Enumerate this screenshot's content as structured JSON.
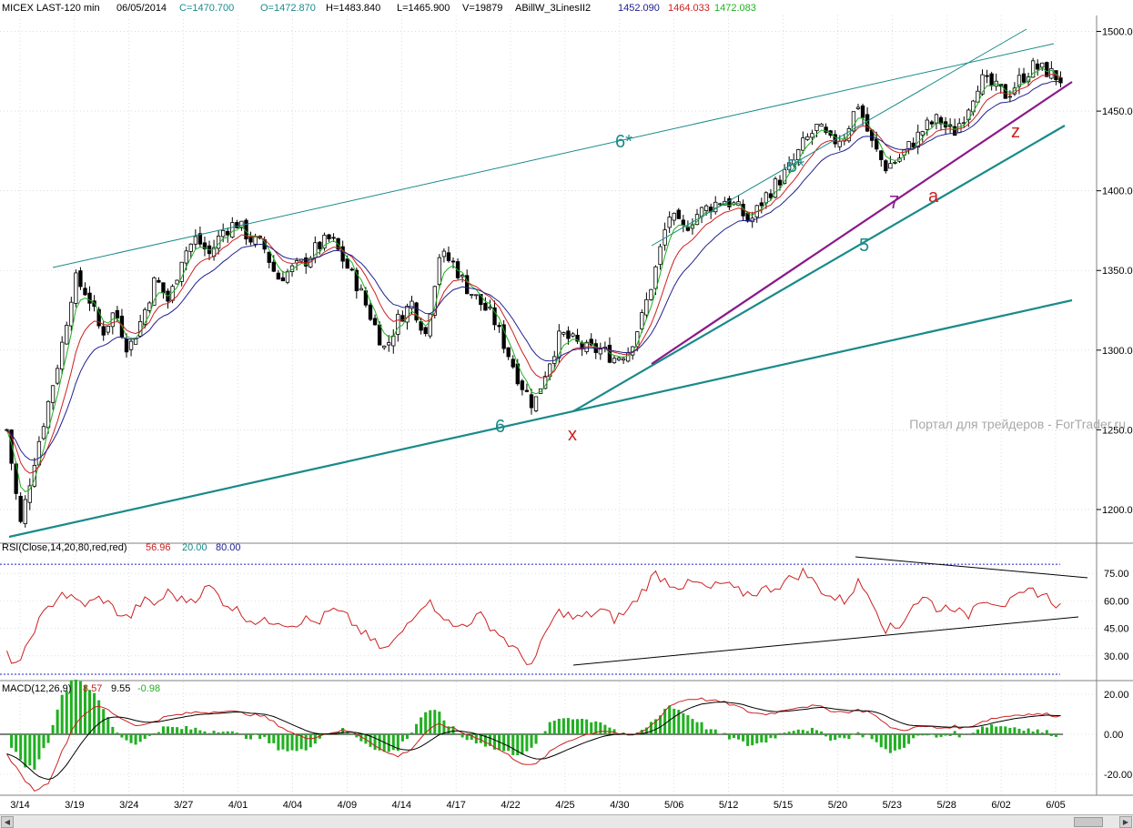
{
  "header": {
    "symbol": "MICEX LAST-120 min",
    "date": "06/05/2014",
    "close": "C=1470.700",
    "open": "O=1472.870",
    "high": "H=1483.840",
    "low": "L=1465.900",
    "volume": "V=19879",
    "indicator": "ABillW_3LinesII2",
    "line1": "1452.090",
    "line2": "1464.033",
    "line3": "1472.083"
  },
  "watermark": "Портал для трейдеров - ForTrader.ru",
  "colors": {
    "teal": "#1a8a8a",
    "purple": "#8a1a8a",
    "red": "#cc2020",
    "green": "#20b020",
    "blue": "#202090",
    "grid": "#c8c8c8"
  },
  "chart_data": [
    {
      "type": "candlestick",
      "panel": "price",
      "ylim": [
        1180,
        1510
      ],
      "y_ticks": [
        "1500.0",
        "1450.0",
        "1400.0",
        "1350.0",
        "1300.0",
        "1250.0",
        "1200.0"
      ],
      "x_tick_labels": [
        "3/14",
        "3/19",
        "3/24",
        "3/27",
        "4/01",
        "4/04",
        "4/09",
        "4/14",
        "4/17",
        "4/22",
        "4/25",
        "4/30",
        "5/06",
        "5/12",
        "5/15",
        "5/20",
        "5/23",
        "5/28",
        "6/02",
        "6/05"
      ],
      "series_shape": [
        1250,
        1190,
        1230,
        1265,
        1300,
        1345,
        1335,
        1310,
        1325,
        1300,
        1320,
        1345,
        1330,
        1360,
        1370,
        1360,
        1375,
        1380,
        1370,
        1365,
        1345,
        1350,
        1355,
        1365,
        1370,
        1355,
        1340,
        1320,
        1300,
        1320,
        1330,
        1310,
        1360,
        1355,
        1340,
        1330,
        1320,
        1300,
        1280,
        1265,
        1290,
        1310,
        1305,
        1300,
        1300,
        1295,
        1300,
        1320,
        1350,
        1385,
        1375,
        1385,
        1390,
        1395,
        1390,
        1380,
        1395,
        1405,
        1415,
        1430,
        1440,
        1430,
        1435,
        1455,
        1430,
        1415,
        1420,
        1430,
        1440,
        1445,
        1435,
        1450,
        1470,
        1465,
        1460,
        1470,
        1478,
        1475,
        1470
      ],
      "wave_labels": [
        {
          "text": "6*",
          "price": 1438
        },
        {
          "text": "5*",
          "price": 1422
        },
        {
          "text": "7",
          "price": 1395
        },
        {
          "text": "a",
          "price": 1398
        },
        {
          "text": "z",
          "price": 1440
        },
        {
          "text": "5",
          "price": 1362
        },
        {
          "text": "6",
          "price": 1254
        },
        {
          "text": "x",
          "price": 1243
        }
      ]
    },
    {
      "type": "line",
      "panel": "rsi",
      "title": "RSI(Close,14,20,80,red,red)",
      "values_label": [
        "56.96",
        "20.00",
        "80.00"
      ],
      "ylim": [
        18,
        85
      ],
      "y_ticks": [
        "75.00",
        "60.00",
        "45.00",
        "30.00"
      ],
      "levels": [
        20,
        80
      ],
      "series_shape": [
        30,
        25,
        45,
        55,
        65,
        60,
        58,
        62,
        55,
        50,
        60,
        58,
        65,
        60,
        62,
        68,
        60,
        55,
        50,
        48,
        50,
        47,
        50,
        48,
        55,
        52,
        45,
        38,
        33,
        40,
        52,
        60,
        55,
        45,
        48,
        52,
        45,
        38,
        30,
        25,
        45,
        55,
        50,
        52,
        55,
        50,
        55,
        65,
        75,
        70,
        68,
        70,
        66,
        70,
        65,
        64,
        66,
        68,
        72,
        76,
        68,
        62,
        60,
        70,
        62,
        45,
        45,
        58,
        62,
        55,
        58,
        50,
        62,
        60,
        58,
        62,
        66,
        62,
        57
      ]
    },
    {
      "type": "line",
      "panel": "macd",
      "title": "MACD(12,26,9)",
      "values_label": [
        "8.57",
        "9.55",
        "-0.98"
      ],
      "ylim": [
        -30,
        25
      ],
      "y_ticks": [
        "20.00",
        "0.00",
        "-20.00"
      ],
      "series_shape": [
        -10,
        -20,
        -28,
        -25,
        -10,
        5,
        12,
        14,
        10,
        6,
        4,
        7,
        9,
        10,
        11,
        11,
        12,
        11,
        10,
        9,
        5,
        1,
        -2,
        -1,
        1,
        2,
        0,
        -4,
        -9,
        -11,
        -7,
        1,
        5,
        3,
        0,
        -2,
        -6,
        -10,
        -14,
        -16,
        -10,
        -5,
        -2,
        0,
        2,
        1,
        -1,
        1,
        6,
        14,
        17,
        18,
        17,
        16,
        14,
        11,
        10,
        11,
        13,
        14,
        14,
        12,
        11,
        12,
        11,
        5,
        2,
        3,
        4,
        3,
        4,
        3,
        6,
        8,
        9,
        10,
        10,
        10,
        9
      ]
    }
  ]
}
